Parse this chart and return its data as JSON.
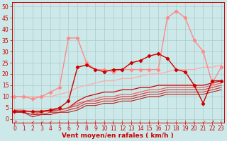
{
  "background_color": "#cce8e8",
  "grid_color": "#aacccc",
  "xlabel": "Vent moyen/en rafales ( km/h )",
  "xlabel_color": "#cc0000",
  "xlabel_fontsize": 6.5,
  "xticks": [
    0,
    1,
    2,
    3,
    4,
    5,
    6,
    7,
    8,
    9,
    10,
    11,
    12,
    13,
    14,
    15,
    16,
    17,
    18,
    19,
    20,
    21,
    22,
    23
  ],
  "yticks": [
    0,
    5,
    10,
    15,
    20,
    25,
    30,
    35,
    40,
    45,
    50
  ],
  "ylim": [
    -1.5,
    52
  ],
  "xlim": [
    -0.3,
    23.3
  ],
  "tick_fontsize": 5.5,
  "series": [
    {
      "x": [
        0,
        1,
        2,
        3,
        4,
        5,
        6,
        7,
        8,
        9,
        10,
        11,
        12,
        13,
        14,
        15,
        16,
        17,
        18,
        19,
        20,
        21,
        22,
        23
      ],
      "y": [
        3.5,
        3.5,
        3.5,
        3.5,
        3.5,
        4,
        5,
        8,
        10,
        11,
        12,
        12,
        13,
        13,
        14,
        14,
        15,
        15,
        15,
        15,
        15,
        15,
        16,
        17
      ],
      "color": "#cc0000",
      "lw": 0.9,
      "marker": null,
      "markersize": 0,
      "zorder": 2
    },
    {
      "x": [
        0,
        1,
        2,
        3,
        4,
        5,
        6,
        7,
        8,
        9,
        10,
        11,
        12,
        13,
        14,
        15,
        16,
        17,
        18,
        19,
        20,
        21,
        22,
        23
      ],
      "y": [
        10,
        10,
        10,
        10,
        10,
        11,
        12,
        14,
        15,
        16,
        17,
        17,
        18,
        18,
        19,
        20,
        20,
        21,
        22,
        22,
        22,
        23,
        23,
        24
      ],
      "color": "#ffaaaa",
      "lw": 0.9,
      "marker": null,
      "markersize": 0,
      "zorder": 2
    },
    {
      "x": [
        0,
        1,
        2,
        3,
        4,
        5,
        6,
        7,
        8,
        9,
        10,
        11,
        12,
        13,
        14,
        15,
        16,
        17,
        18,
        19,
        20,
        21,
        22,
        23
      ],
      "y": [
        4,
        4,
        3,
        3,
        4,
        4,
        5,
        7,
        8,
        9,
        10,
        10,
        11,
        11,
        12,
        13,
        13,
        14,
        14,
        14,
        14,
        14,
        15,
        16
      ],
      "color": "#ee6666",
      "lw": 0.9,
      "marker": null,
      "markersize": 0,
      "zorder": 2
    },
    {
      "x": [
        0,
        1,
        2,
        3,
        4,
        5,
        6,
        7,
        8,
        9,
        10,
        11,
        12,
        13,
        14,
        15,
        16,
        17,
        18,
        19,
        20,
        21,
        22,
        23
      ],
      "y": [
        3,
        3,
        2,
        3,
        4,
        4,
        5,
        6,
        8,
        8,
        9,
        9,
        10,
        10,
        11,
        12,
        12,
        13,
        13,
        13,
        13,
        13,
        14,
        15
      ],
      "color": "#dd4444",
      "lw": 0.9,
      "marker": null,
      "markersize": 0,
      "zorder": 2
    },
    {
      "x": [
        0,
        1,
        2,
        3,
        4,
        5,
        6,
        7,
        8,
        9,
        10,
        11,
        12,
        13,
        14,
        15,
        16,
        17,
        18,
        19,
        20,
        21,
        22,
        23
      ],
      "y": [
        4,
        3,
        2,
        2,
        3,
        3,
        4,
        5,
        7,
        7,
        8,
        8,
        9,
        9,
        10,
        11,
        11,
        12,
        12,
        12,
        12,
        12,
        13,
        14
      ],
      "color": "#cc3333",
      "lw": 0.8,
      "marker": null,
      "markersize": 0,
      "zorder": 2
    },
    {
      "x": [
        0,
        1,
        2,
        3,
        4,
        5,
        6,
        7,
        8,
        9,
        10,
        11,
        12,
        13,
        14,
        15,
        16,
        17,
        18,
        19,
        20,
        21,
        22,
        23
      ],
      "y": [
        3,
        3,
        1,
        2,
        2,
        3,
        3,
        4,
        6,
        6,
        7,
        7,
        8,
        8,
        9,
        10,
        10,
        11,
        11,
        11,
        11,
        11,
        12,
        13
      ],
      "color": "#bb2222",
      "lw": 0.8,
      "marker": null,
      "markersize": 0,
      "zorder": 2
    },
    {
      "x": [
        0,
        1,
        2,
        3,
        4,
        5,
        6,
        7,
        8,
        9,
        10,
        11,
        12,
        13,
        14,
        15,
        16,
        17,
        18,
        19,
        20,
        21,
        22,
        23
      ],
      "y": [
        3.5,
        3.5,
        3.5,
        3.5,
        4,
        5,
        8,
        23,
        24,
        22,
        21,
        22,
        22,
        25,
        26,
        28,
        29,
        27,
        22,
        21,
        15,
        7,
        17,
        17
      ],
      "color": "#cc0000",
      "lw": 1.0,
      "marker": "D",
      "markersize": 2.2,
      "zorder": 5
    },
    {
      "x": [
        0,
        1,
        2,
        3,
        4,
        5,
        6,
        7,
        8,
        9,
        10,
        11,
        12,
        13,
        14,
        15,
        16,
        17,
        18,
        19,
        20,
        21,
        22,
        23
      ],
      "y": [
        10,
        10,
        9,
        10,
        12,
        14,
        36,
        36,
        25,
        22,
        22,
        21,
        22,
        22,
        22,
        22,
        22,
        45,
        48,
        45,
        35,
        30,
        16,
        23
      ],
      "color": "#ff8888",
      "lw": 1.0,
      "marker": "D",
      "markersize": 2.2,
      "zorder": 4
    }
  ],
  "wind_arrows_x": [
    0,
    1,
    2,
    3,
    4,
    5,
    6,
    7,
    8,
    9,
    10,
    11,
    12,
    13,
    14,
    15,
    16,
    17,
    18,
    19,
    20,
    21,
    22,
    23
  ],
  "wind_arrows_chars": [
    "↗",
    "←",
    "↙",
    "↙",
    "↙",
    "↓",
    "↓",
    "↓",
    "↓",
    "↓",
    "↓",
    "↓",
    "↓",
    "↓",
    "↓",
    "↓",
    "↓",
    "↓",
    "↓",
    "↓",
    "↓",
    "↙",
    "↗",
    "↓"
  ],
  "arrow_color": "#cc0000",
  "arrow_fontsize": 4.5
}
